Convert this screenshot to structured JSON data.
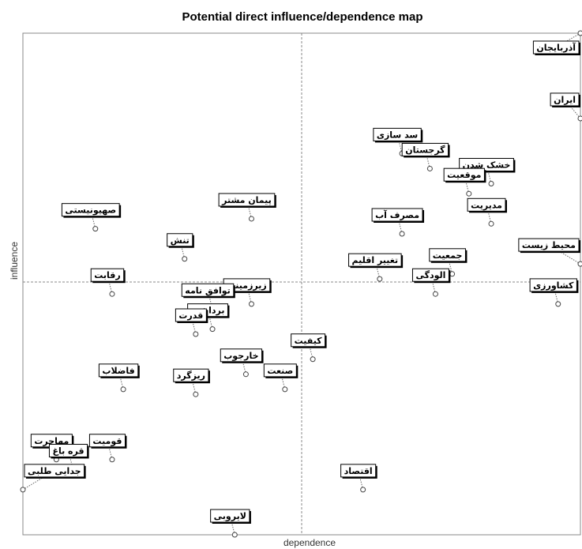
{
  "chart_data": {
    "type": "scatter",
    "title": "Potential direct influence/dependence map",
    "xlabel": "dependence",
    "ylabel": "influence",
    "xlim": [
      0,
      100
    ],
    "ylim": [
      0,
      100
    ],
    "grid": false,
    "quadrant_lines": {
      "x": 50,
      "y": 50
    },
    "points": [
      {
        "label": "آذربایجان",
        "x": 100,
        "y": 100
      },
      {
        "label": "ایران",
        "x": 100,
        "y": 83
      },
      {
        "label": "سد سازی",
        "x": 68,
        "y": 76
      },
      {
        "label": "خشک شدن",
        "x": 84,
        "y": 70
      },
      {
        "label": "گرجستان",
        "x": 73,
        "y": 73
      },
      {
        "label": "موقعیت",
        "x": 80,
        "y": 68
      },
      {
        "label": "پیمان مشتر",
        "x": 41,
        "y": 63
      },
      {
        "label": "صهیونیستی",
        "x": 13,
        "y": 61
      },
      {
        "label": "مصرف آب",
        "x": 68,
        "y": 60
      },
      {
        "label": "مدیریت",
        "x": 84,
        "y": 62
      },
      {
        "label": "جمعیت",
        "x": 77,
        "y": 52
      },
      {
        "label": "محیط زیست",
        "x": 100,
        "y": 54
      },
      {
        "label": "تنش",
        "x": 29,
        "y": 55
      },
      {
        "label": "رقابت",
        "x": 16,
        "y": 48
      },
      {
        "label": "زیرزمینی",
        "x": 41,
        "y": 46
      },
      {
        "label": "توافق نامه",
        "x": 34,
        "y": 45
      },
      {
        "label": "تغییر اقلیم",
        "x": 64,
        "y": 51
      },
      {
        "label": "الودگی",
        "x": 74,
        "y": 48
      },
      {
        "label": "کشاورزی",
        "x": 96,
        "y": 46
      },
      {
        "label": "برداشت",
        "x": 34,
        "y": 41
      },
      {
        "label": "قدرت",
        "x": 31,
        "y": 40
      },
      {
        "label": "فاضلاب",
        "x": 18,
        "y": 29
      },
      {
        "label": "خارجوب",
        "x": 40,
        "y": 32
      },
      {
        "label": "کیفیت",
        "x": 52,
        "y": 35
      },
      {
        "label": "صنعت",
        "x": 47,
        "y": 29
      },
      {
        "label": "ریزگرد",
        "x": 31,
        "y": 28
      },
      {
        "label": "مهاجرت",
        "x": 6,
        "y": 15
      },
      {
        "label": "قره باغ",
        "x": 9,
        "y": 13
      },
      {
        "label": "قومیت",
        "x": 16,
        "y": 15
      },
      {
        "label": "جدایی طلبی",
        "x": 0,
        "y": 9
      },
      {
        "label": "اقتصاد",
        "x": 61,
        "y": 9
      },
      {
        "label": "لایروبی",
        "x": 38,
        "y": 0
      }
    ]
  }
}
